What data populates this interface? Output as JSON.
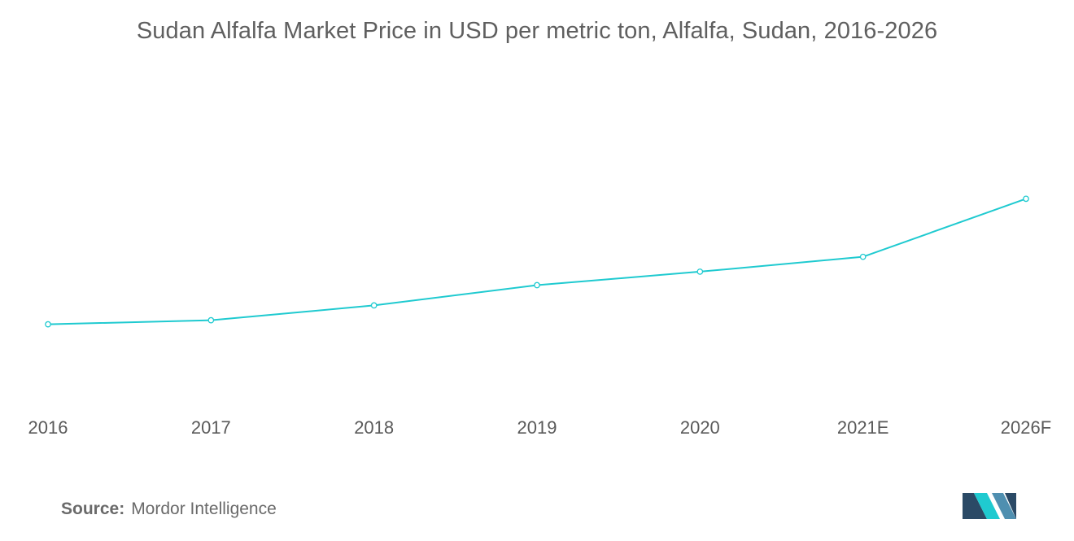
{
  "chart_data": {
    "type": "line",
    "title": "Sudan Alfalfa Market Price in USD per metric ton, Alfalfa, Sudan, 2016-2026",
    "categories": [
      "2016",
      "2017",
      "2018",
      "2019",
      "2020",
      "2021E",
      "2026F"
    ],
    "series": [
      {
        "values": [
          40,
          43,
          54,
          69,
          79,
          90,
          133
        ],
        "color": "#1fcad0"
      }
    ],
    "ylim": [
      0,
      220
    ],
    "grid": false,
    "y_axis_labels": false,
    "markers": "hollow-circle"
  },
  "source": {
    "label": "Source:",
    "value": "Mordor Intelligence"
  },
  "logo": {
    "name": "mordor-intelligence-logo",
    "colors": [
      "#2b4a66",
      "#1fcad0",
      "#4f8fb0"
    ]
  }
}
